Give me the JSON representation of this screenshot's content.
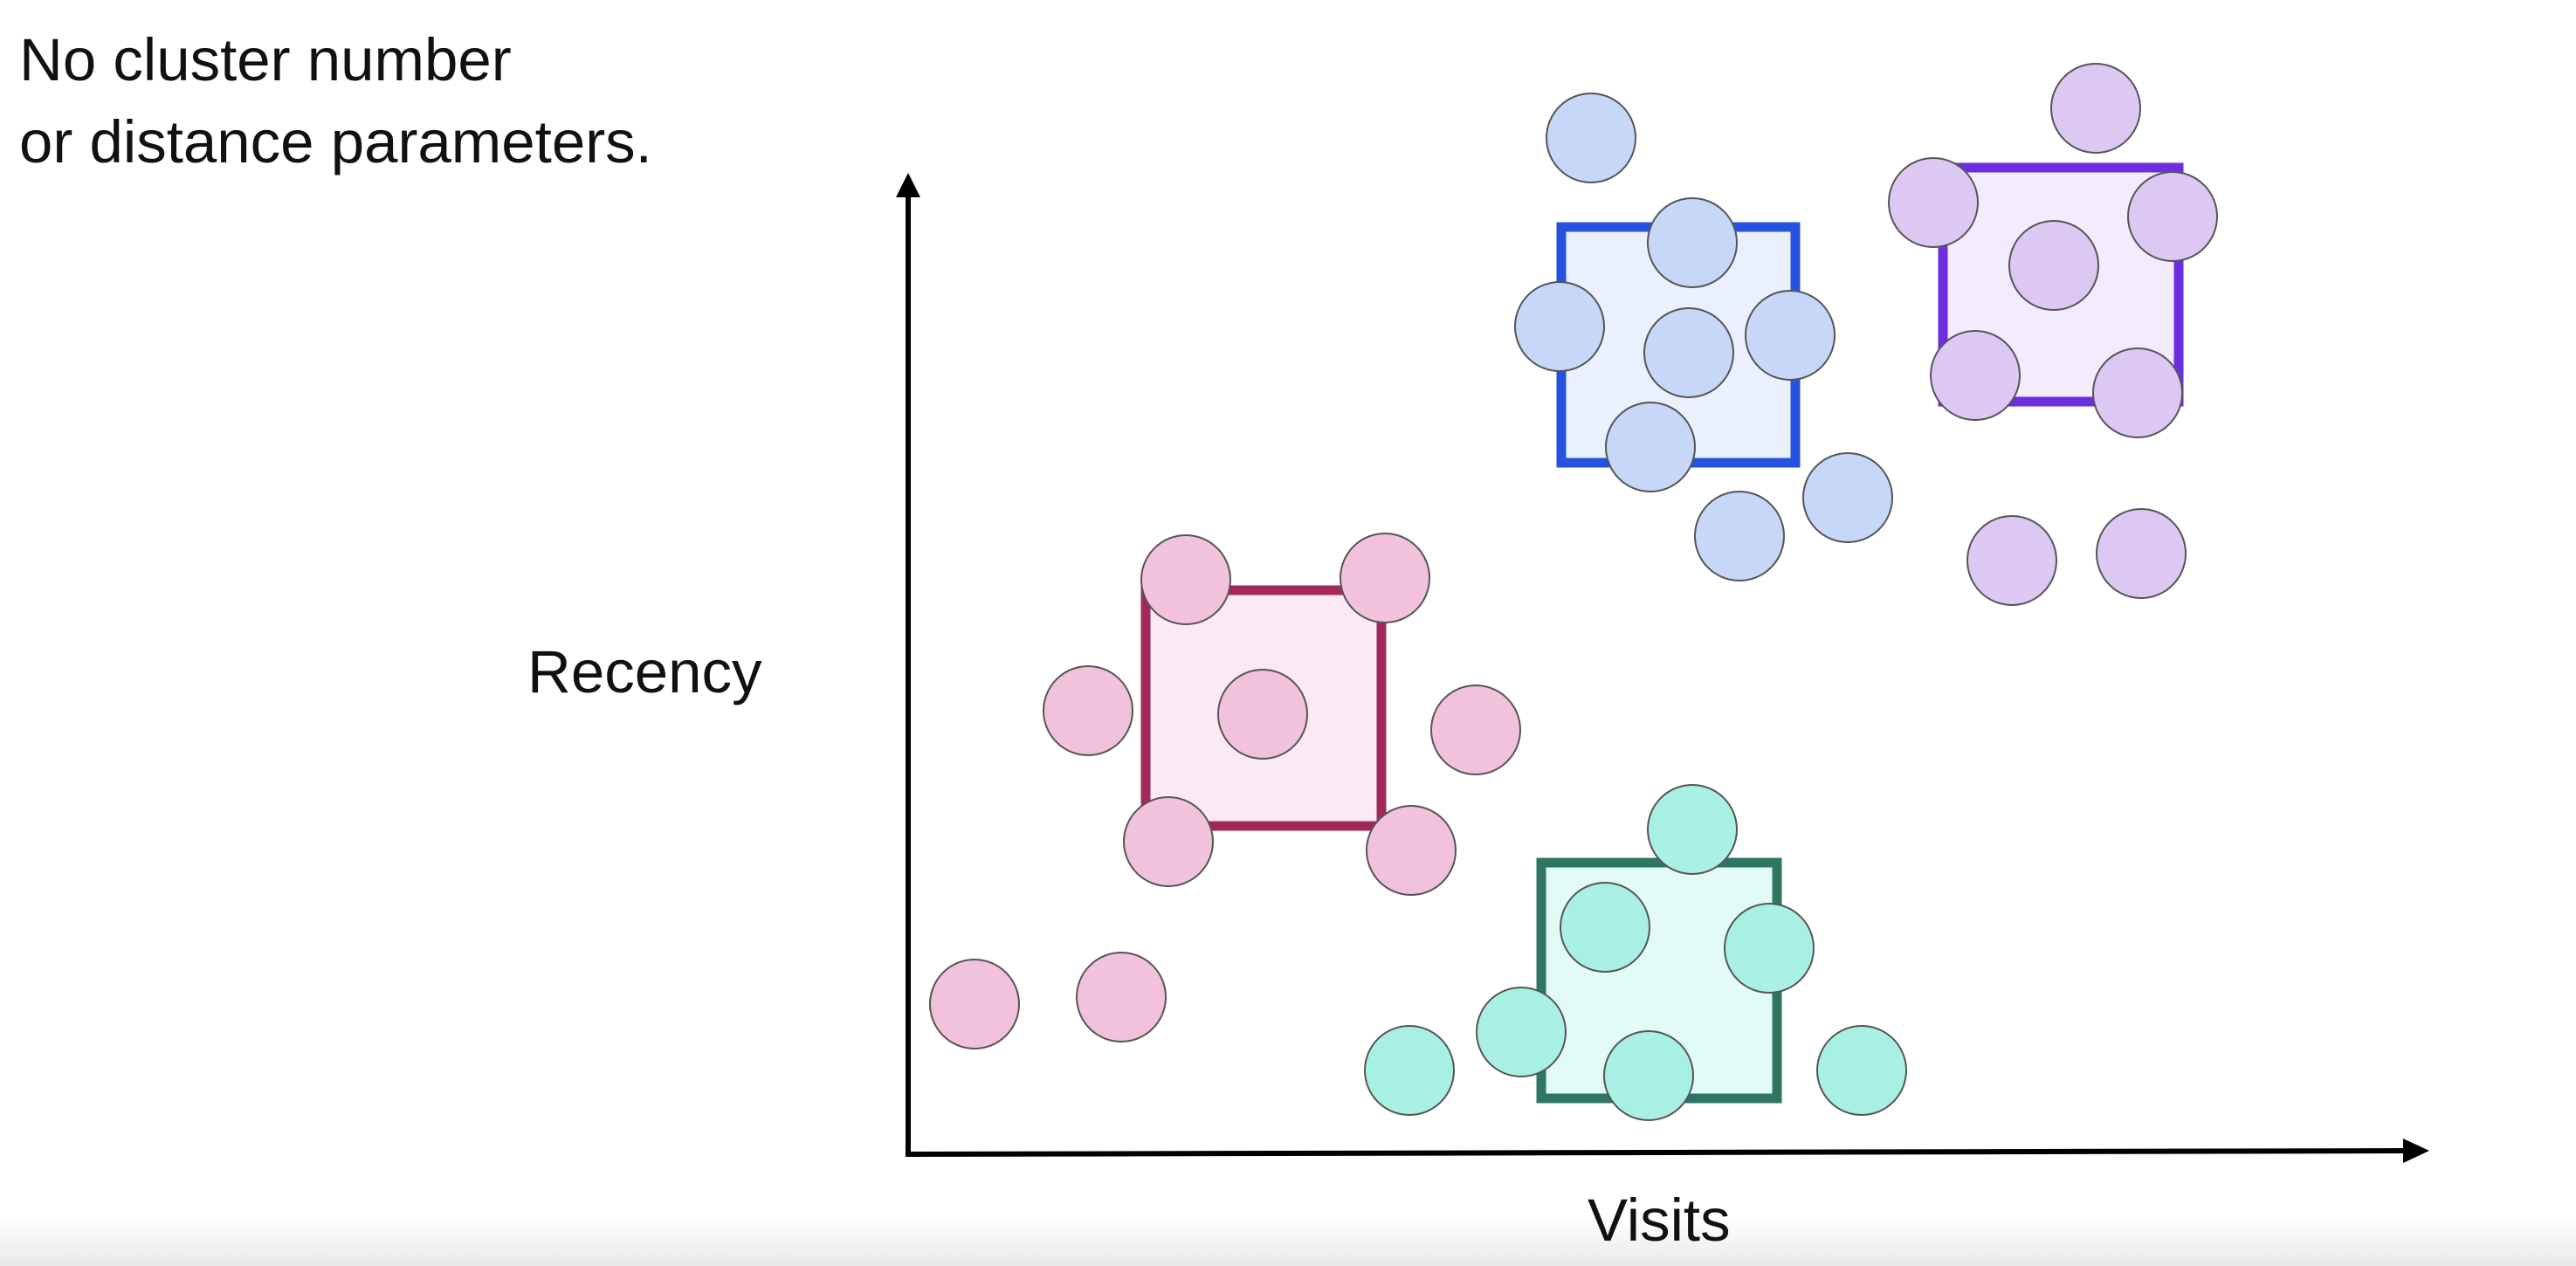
{
  "title_lines": [
    "No cluster number",
    "or distance parameters."
  ],
  "axis": {
    "x_label": "Visits",
    "y_label": "Recency"
  },
  "clusters": [
    {
      "id": "pink",
      "fill": "#f2c1dc",
      "box_stroke": "#a3285a",
      "box_fill": "#fbeaf3"
    },
    {
      "id": "blue",
      "fill": "#c7d7f7",
      "box_stroke": "#2553e0",
      "box_fill": "#eaf0fc"
    },
    {
      "id": "purple",
      "fill": "#dcc8f3",
      "box_stroke": "#6b2ee0",
      "box_fill": "#f3ecfc"
    },
    {
      "id": "teal",
      "fill": "#a9f0e4",
      "box_stroke": "#2e7564",
      "box_fill": "#e3fbf7"
    }
  ],
  "colors": {
    "axis": "#000000",
    "point_outline": "#555555"
  }
}
